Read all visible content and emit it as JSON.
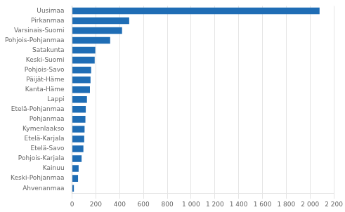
{
  "chart_data": {
    "type": "bar",
    "orientation": "horizontal",
    "categories": [
      "Uusimaa",
      "Pirkanmaa",
      "Varsinais-Suomi",
      "Pohjois-Pohjanmaa",
      "Satakunta",
      "Keski-Suomi",
      "Pohjois-Savo",
      "Päijät-Häme",
      "Kanta-Häme",
      "Lappi",
      "Etelä-Pohjanmaa",
      "Pohjanmaa",
      "Kymenlaakso",
      "Etelä-Karjala",
      "Etelä-Savo",
      "Pohjois-Karjala",
      "Kainuu",
      "Keski-Pohjanmaa",
      "Ahvenanmaa"
    ],
    "values": [
      2080,
      480,
      420,
      320,
      195,
      190,
      160,
      155,
      150,
      125,
      115,
      112,
      105,
      102,
      95,
      80,
      55,
      50,
      15
    ],
    "color": "#1F6DB5",
    "xlim": [
      0,
      2200
    ],
    "xticks": [
      0,
      200,
      400,
      600,
      800,
      {
        "value": 1000,
        "label": "1 000"
      },
      {
        "value": 1200,
        "label": "1 200"
      },
      {
        "value": 1400,
        "label": "1 400"
      },
      {
        "value": 1600,
        "label": "1 600"
      },
      {
        "value": 1800,
        "label": "1 800"
      },
      {
        "value": 2000,
        "label": "2 000"
      },
      {
        "value": 2200,
        "label": "2 200"
      }
    ],
    "grid": true
  }
}
